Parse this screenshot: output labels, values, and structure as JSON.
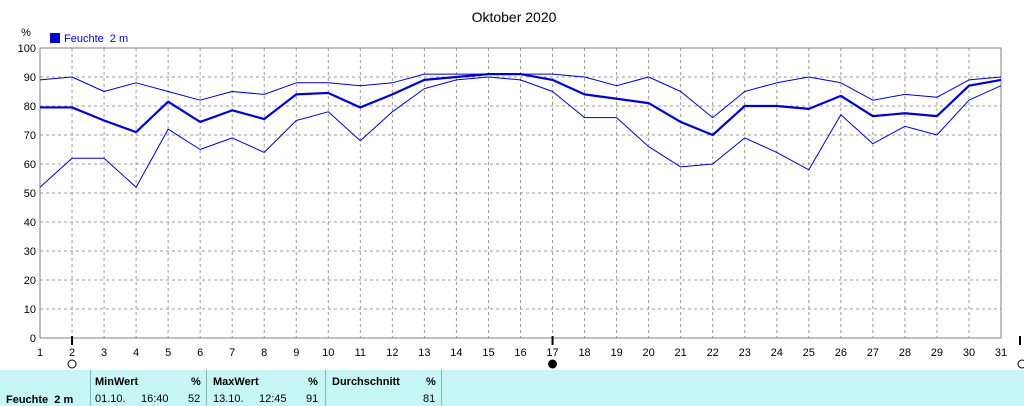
{
  "chart_data": {
    "type": "line",
    "title": "Oktober 2020",
    "ylabel": "%",
    "ylim": [
      0,
      100
    ],
    "yticks": [
      0,
      10,
      20,
      30,
      40,
      50,
      60,
      70,
      80,
      90,
      100
    ],
    "x": [
      1,
      2,
      3,
      4,
      5,
      6,
      7,
      8,
      9,
      10,
      11,
      12,
      13,
      14,
      15,
      16,
      17,
      18,
      19,
      20,
      21,
      22,
      23,
      24,
      25,
      26,
      27,
      28,
      29,
      30,
      31
    ],
    "grid": true,
    "legend": {
      "position": "top-left",
      "label": "Feuchte  2 m"
    },
    "series": [
      {
        "name": "Feuchte  2 m",
        "role": "mean",
        "color": "#0000cc",
        "values": [
          79.5,
          79.5,
          75,
          71,
          81.5,
          74.5,
          78.5,
          75.5,
          84,
          84.5,
          79.5,
          84,
          89,
          90,
          91,
          91,
          89,
          84,
          82.5,
          81,
          74.5,
          70,
          80,
          80,
          79,
          83.5,
          76.5,
          77.5,
          76.5,
          87,
          89
        ]
      },
      {
        "role": "max",
        "color": "#0000cc",
        "values": [
          89,
          90,
          85,
          88,
          85,
          82,
          85,
          84,
          88,
          88,
          87,
          88,
          91,
          91,
          91,
          91,
          91,
          90,
          87,
          90,
          85,
          76,
          85,
          88,
          90,
          88,
          82,
          84,
          83,
          89,
          90
        ]
      },
      {
        "role": "min",
        "color": "#0000cc",
        "values": [
          52,
          62,
          62,
          52,
          72,
          65,
          69,
          64,
          75,
          78,
          68,
          78,
          86,
          89,
          90,
          89,
          85,
          76,
          76,
          66,
          59,
          60,
          69,
          64,
          58,
          77,
          67,
          73,
          70,
          82,
          87
        ]
      }
    ],
    "moon_phase_markers": [
      {
        "day": 2,
        "phase": "full-moon"
      },
      {
        "day": 17,
        "phase": "new-moon"
      },
      {
        "day": 31,
        "phase": "full-moon"
      }
    ]
  },
  "stats_panel": {
    "row_label": "Feuchte  2 m",
    "min": {
      "header": "MinWert",
      "unit": "%",
      "date": "01.10.",
      "time": "16:40",
      "value": "52"
    },
    "max": {
      "header": "MaxWert",
      "unit": "%",
      "date": "13.10.",
      "time": "12:45",
      "value": "91"
    },
    "avg": {
      "header": "Durchschnitt",
      "unit": "%",
      "value": "81"
    }
  }
}
